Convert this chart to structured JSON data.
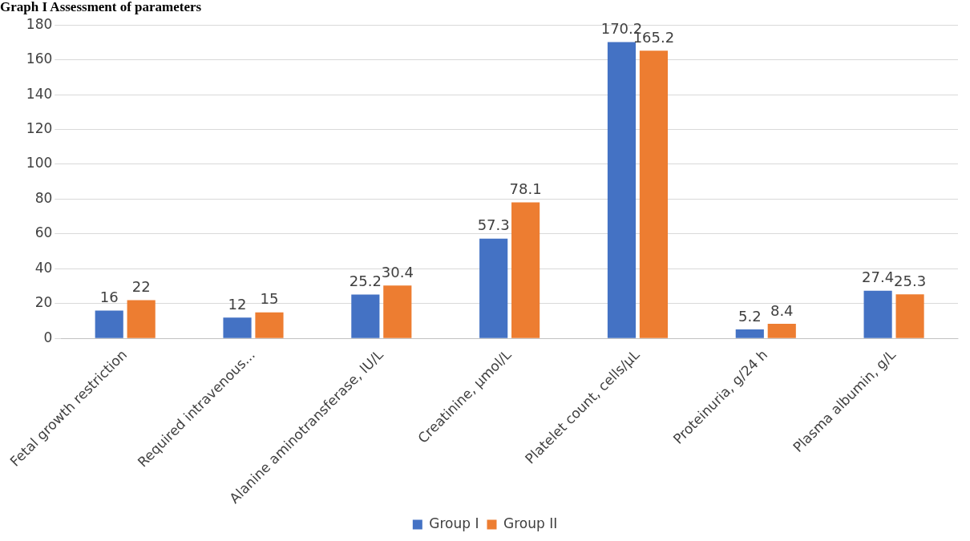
{
  "chart_data": {
    "type": "bar",
    "title": "Graph I Assessment of parameters",
    "categories": [
      "Fetal growth restriction",
      "Required intravenous...",
      "Alanine aminotransferase, IU/L",
      "Creatinine, µmol/L",
      "Platelet count, cells/µL",
      "Proteinuria, g/24 h",
      "Plasma albumin, g/L"
    ],
    "series": [
      {
        "name": "Group I",
        "color": "#4472c4",
        "values": [
          16,
          12,
          25.2,
          57.3,
          170.2,
          5.2,
          27.4
        ]
      },
      {
        "name": "Group II",
        "color": "#ed7d31",
        "values": [
          22,
          15,
          30.4,
          78.1,
          165.2,
          8.4,
          25.3
        ]
      }
    ],
    "ylim": [
      0,
      180
    ],
    "yticks": [
      0,
      20,
      40,
      60,
      80,
      100,
      120,
      140,
      160,
      180
    ],
    "grid": "y",
    "legend": "bottom",
    "data_labels": true
  }
}
